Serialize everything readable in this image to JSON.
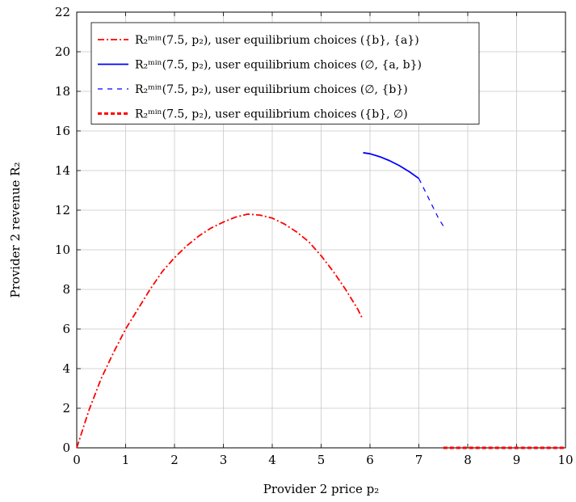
{
  "chart_data": {
    "type": "line",
    "xlabel": "Provider 2 price p₂",
    "ylabel": "Provider 2 revenue R₂",
    "xlim": [
      0,
      10
    ],
    "ylim": [
      0,
      22
    ],
    "xticks": [
      "0",
      "1",
      "2",
      "3",
      "4",
      "5",
      "6",
      "7",
      "8",
      "9",
      "10"
    ],
    "yticks": [
      "0",
      "2",
      "4",
      "6",
      "8",
      "10",
      "12",
      "14",
      "16",
      "18",
      "20",
      "22"
    ],
    "grid": true,
    "legend_position": "top-left",
    "series": [
      {
        "name": "R₂ᵐⁱⁿ(7.5, p₂), user equilibrium choices ({b}, {a})",
        "color": "#ff0000",
        "style": "dash-dot",
        "x": [
          0,
          0.25,
          0.5,
          0.75,
          1.0,
          1.25,
          1.5,
          1.75,
          2.0,
          2.25,
          2.5,
          2.75,
          3.0,
          3.25,
          3.5,
          3.75,
          4.0,
          4.25,
          4.5,
          4.75,
          5.0,
          5.25,
          5.5,
          5.75,
          5.85
        ],
        "y": [
          0,
          1.9,
          3.5,
          4.8,
          6.0,
          7.0,
          8.0,
          8.9,
          9.6,
          10.2,
          10.7,
          11.1,
          11.4,
          11.65,
          11.8,
          11.75,
          11.6,
          11.3,
          10.9,
          10.4,
          9.7,
          8.9,
          8.0,
          7.0,
          6.5
        ]
      },
      {
        "name": "R₂ᵐⁱⁿ(7.5, p₂), user equilibrium choices (∅, {a, b})",
        "color": "#0000ff",
        "style": "solid",
        "x": [
          5.86,
          6.0,
          6.2,
          6.4,
          6.6,
          6.8,
          7.0
        ],
        "y": [
          14.9,
          14.85,
          14.7,
          14.5,
          14.25,
          13.95,
          13.6
        ]
      },
      {
        "name": "R₂ᵐⁱⁿ(7.5, p₂), user equilibrium choices (∅, {b})",
        "color": "#0000ff",
        "style": "dashed",
        "x": [
          7.0,
          7.1,
          7.2,
          7.3,
          7.4,
          7.5
        ],
        "y": [
          13.6,
          13.1,
          12.6,
          12.1,
          11.6,
          11.2
        ]
      },
      {
        "name": "R₂ᵐⁱⁿ(7.5, p₂), user equilibrium choices ({b}, ∅)",
        "color": "#ff0000",
        "style": "thick-dashed",
        "x": [
          7.5,
          10.0
        ],
        "y": [
          0,
          0
        ]
      }
    ]
  }
}
